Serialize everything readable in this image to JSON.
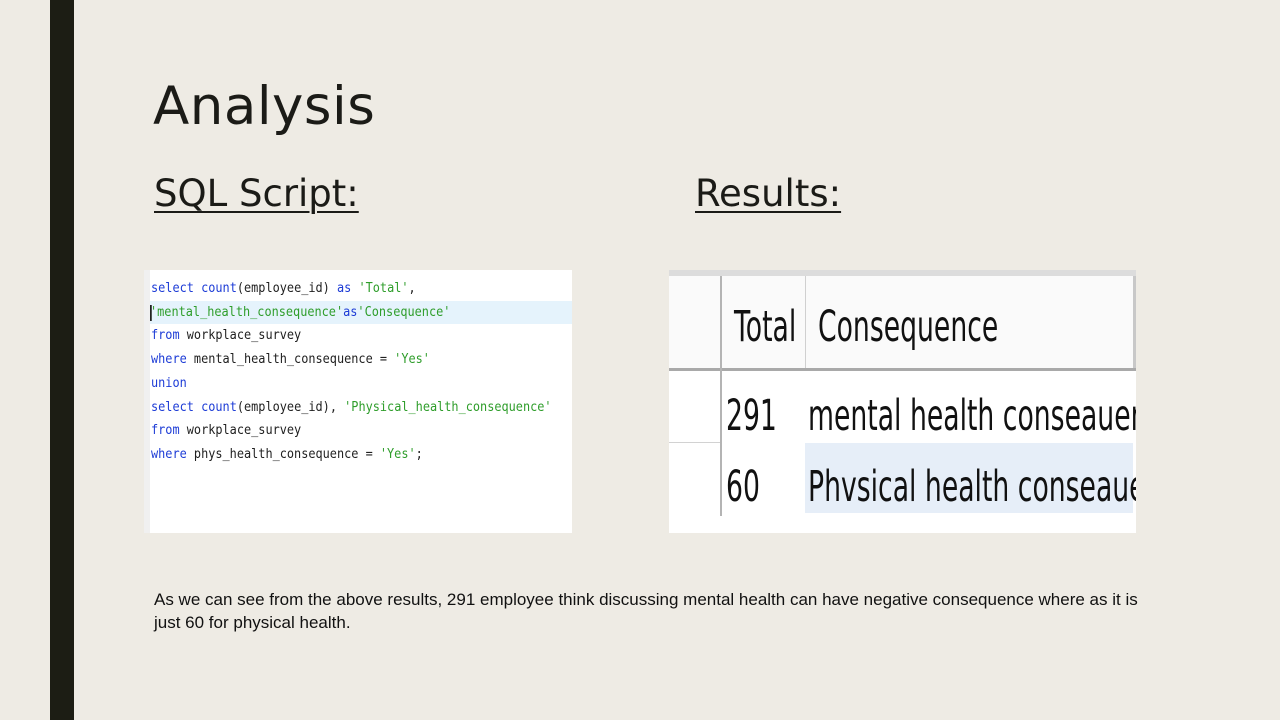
{
  "slide": {
    "title": "Analysis",
    "sql_heading": "SQL Script:",
    "results_heading": "Results:",
    "caption": "As we can see from the above results, 291 employee think discussing mental health can have negative consequence where as it is just 60 for physical health."
  },
  "sql": {
    "lines": [
      [
        {
          "t": "select",
          "c": "kw"
        },
        {
          "t": " "
        },
        {
          "t": "count",
          "c": "kw"
        },
        {
          "t": "(employee_id) "
        },
        {
          "t": "as",
          "c": "kw"
        },
        {
          "t": " "
        },
        {
          "t": "'Total'",
          "c": "str"
        },
        {
          "t": ","
        }
      ],
      [
        {
          "t": "'mental_health_consequence'",
          "c": "str"
        },
        {
          "t": "as",
          "c": "kw"
        },
        {
          "t": "'Consequence'",
          "c": "str"
        }
      ],
      [
        {
          "t": "from",
          "c": "kw"
        },
        {
          "t": " workplace_survey"
        }
      ],
      [
        {
          "t": "where",
          "c": "kw"
        },
        {
          "t": " mental_health_consequence = "
        },
        {
          "t": "'Yes'",
          "c": "str"
        }
      ],
      [
        {
          "t": "union",
          "c": "kw"
        }
      ],
      [
        {
          "t": "select",
          "c": "kw"
        },
        {
          "t": " "
        },
        {
          "t": "count",
          "c": "kw"
        },
        {
          "t": "(employee_id), "
        },
        {
          "t": "'Physical_health_consequence'",
          "c": "str"
        }
      ],
      [
        {
          "t": "from",
          "c": "kw"
        },
        {
          "t": " workplace_survey"
        }
      ],
      [
        {
          "t": "where",
          "c": "kw"
        },
        {
          "t": " phys_health_consequence = "
        },
        {
          "t": "'Yes'",
          "c": "str"
        },
        {
          "t": ";"
        }
      ]
    ],
    "highlighted_line": 1
  },
  "results": {
    "columns": [
      "Total",
      "Consequence"
    ],
    "rows": [
      {
        "total": "291",
        "consequence": "mental  health  conseauence"
      },
      {
        "total": "60",
        "consequence": "Phvsical  health  conseauence"
      }
    ]
  },
  "colors": {
    "background": "#eeebe4",
    "accent_bar": "#1c1d14",
    "sql_keyword": "#1c3bd6",
    "sql_string": "#2e9d2a",
    "sql_line_highlight": "#e5f3fc",
    "selected_row": "#e6eef8"
  }
}
